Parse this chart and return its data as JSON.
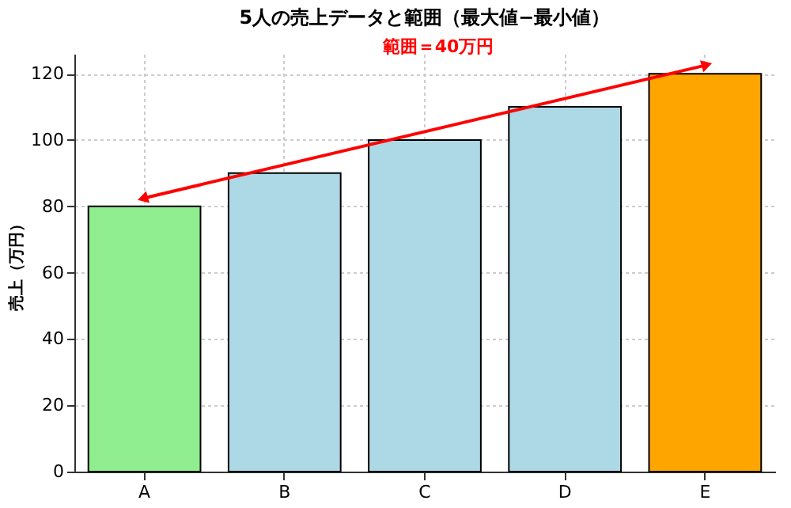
{
  "chart_data": {
    "type": "bar",
    "title": "5人の売上データと範囲（最大値−最小値）",
    "ylabel": "売上（万円）",
    "categories": [
      "A",
      "B",
      "C",
      "D",
      "E"
    ],
    "values": [
      80,
      90,
      100,
      110,
      120
    ],
    "colors": [
      "#90ee90",
      "#add8e6",
      "#add8e6",
      "#add8e6",
      "#ffa500"
    ],
    "ylim": [
      0,
      126
    ],
    "yticks": [
      0,
      20,
      40,
      60,
      80,
      100,
      120
    ],
    "grid": true,
    "annotations": [
      "範囲＝40万円"
    ]
  }
}
